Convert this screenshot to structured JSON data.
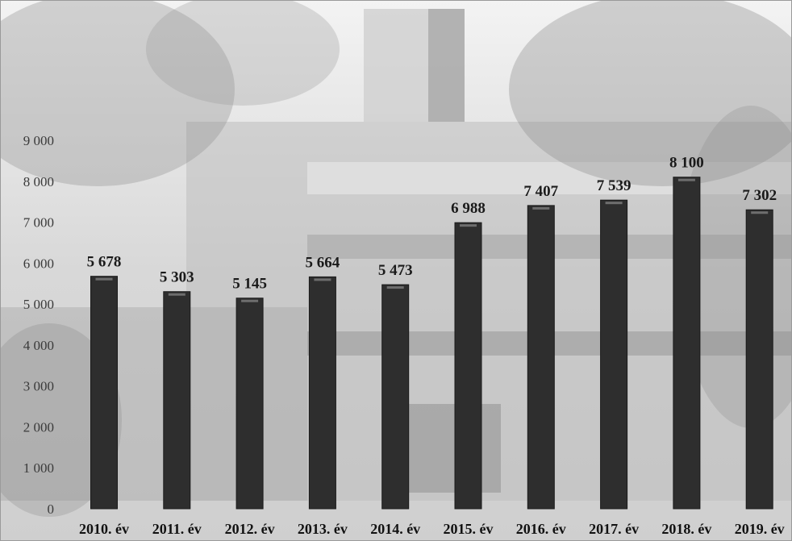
{
  "chart_data": {
    "type": "bar",
    "categories": [
      "2010. év",
      "2011. év",
      "2012. év",
      "2013. év",
      "2014. év",
      "2015. év",
      "2016. év",
      "2017. év",
      "2018. év",
      "2019. év"
    ],
    "values": [
      5678,
      5303,
      5145,
      5664,
      5473,
      6988,
      7407,
      7539,
      8100,
      7302
    ],
    "value_labels": [
      "5 678",
      "5 303",
      "5 145",
      "5 664",
      "5 473",
      "6 988",
      "7 407",
      "7 539",
      "8 100",
      "7 302"
    ],
    "y_ticks": [
      0,
      1000,
      2000,
      3000,
      4000,
      5000,
      6000,
      7000,
      8000,
      9000
    ],
    "y_tick_labels": [
      "0",
      "1 000",
      "2 000",
      "3 000",
      "4 000",
      "5 000",
      "6 000",
      "7 000",
      "8 000",
      "9 000"
    ],
    "ylim": [
      0,
      9000
    ],
    "title": "",
    "xlabel": "",
    "ylabel": "",
    "grid": false,
    "legend": "none",
    "bar_color": "#2e2e2e",
    "background": "photo of a building with trees (grayscale, faded)"
  }
}
